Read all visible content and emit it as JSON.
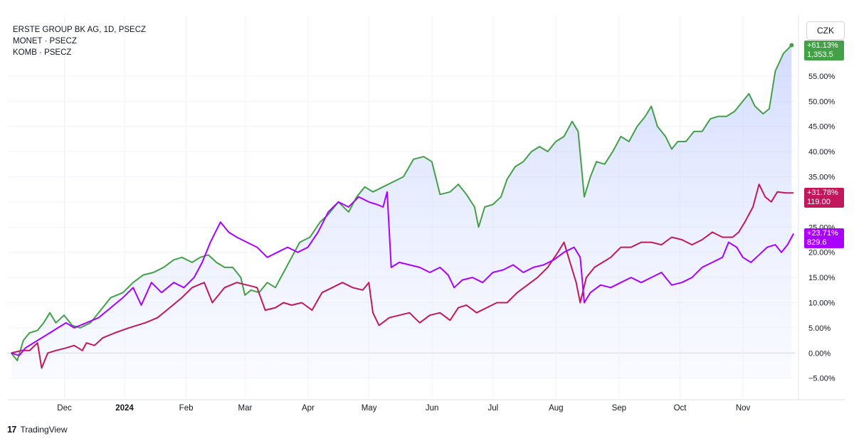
{
  "legend": {
    "line1": "ERSTE GROUP BK AG, 1D, PSECZ",
    "line2": "MONET · PSECZ",
    "line3": "KOMB · PSECZ"
  },
  "currency": "CZK",
  "branding": "TradingView",
  "tags": {
    "erste": {
      "pct": "+61.13%",
      "price": "1,353.5",
      "color": "#43a047"
    },
    "komb": {
      "pct": "+31.78%",
      "price": "119.00",
      "color": "#c2185b"
    },
    "monet": {
      "pct": "+23.71%",
      "price": "829.6",
      "color": "#aa00ff"
    }
  },
  "chart_data": {
    "type": "line",
    "x_ticks": [
      "Dec",
      "2024",
      "Feb",
      "Mar",
      "Apr",
      "May",
      "Jun",
      "Jul",
      "Aug",
      "Sep",
      "Oct",
      "Nov"
    ],
    "y_ticks": [
      "55.00%",
      "50.00%",
      "45.00%",
      "40.00%",
      "35.00%",
      "30.00%",
      "25.00%",
      "20.00%",
      "15.00%",
      "10.00%",
      "5.00%",
      "0.00%",
      "−5.00%"
    ],
    "ylim": [
      -9,
      67
    ],
    "x_range": [
      "2023-11-07",
      "2024-11-29"
    ],
    "series": [
      {
        "name": "ERSTE GROUP BK AG",
        "color": "#43a047",
        "area": true,
        "points": [
          [
            "2023-11-09",
            0
          ],
          [
            "2023-11-12",
            -1.5
          ],
          [
            "2023-11-15",
            2.5
          ],
          [
            "2023-11-18",
            4
          ],
          [
            "2023-11-22",
            4.5
          ],
          [
            "2023-11-25",
            6
          ],
          [
            "2023-11-28",
            8
          ],
          [
            "2023-12-01",
            6
          ],
          [
            "2023-12-05",
            7.5
          ],
          [
            "2023-12-09",
            5.5
          ],
          [
            "2023-12-13",
            5
          ],
          [
            "2023-12-18",
            6
          ],
          [
            "2023-12-22",
            8
          ],
          [
            "2023-12-28",
            11
          ],
          [
            "2024-01-03",
            12
          ],
          [
            "2024-01-08",
            14
          ],
          [
            "2024-01-13",
            15.5
          ],
          [
            "2024-01-18",
            16
          ],
          [
            "2024-01-23",
            17
          ],
          [
            "2024-01-28",
            18.5
          ],
          [
            "2024-02-01",
            19
          ],
          [
            "2024-02-06",
            18
          ],
          [
            "2024-02-10",
            19
          ],
          [
            "2024-02-14",
            19.5
          ],
          [
            "2024-02-18",
            18
          ],
          [
            "2024-02-22",
            17
          ],
          [
            "2024-02-26",
            17
          ],
          [
            "2024-03-01",
            15
          ],
          [
            "2024-03-03",
            11.5
          ],
          [
            "2024-03-06",
            12.5
          ],
          [
            "2024-03-10",
            12
          ],
          [
            "2024-03-14",
            14
          ],
          [
            "2024-03-18",
            13
          ],
          [
            "2024-03-22",
            16
          ],
          [
            "2024-03-26",
            19
          ],
          [
            "2024-03-30",
            22
          ],
          [
            "2024-04-04",
            23
          ],
          [
            "2024-04-09",
            26
          ],
          [
            "2024-04-13",
            27.5
          ],
          [
            "2024-04-18",
            30
          ],
          [
            "2024-04-23",
            28
          ],
          [
            "2024-04-27",
            31
          ],
          [
            "2024-05-01",
            33
          ],
          [
            "2024-05-05",
            32
          ],
          [
            "2024-05-10",
            33
          ],
          [
            "2024-05-15",
            34
          ],
          [
            "2024-05-20",
            35
          ],
          [
            "2024-05-25",
            38.5
          ],
          [
            "2024-05-30",
            39
          ],
          [
            "2024-06-03",
            38
          ],
          [
            "2024-06-07",
            31.5
          ],
          [
            "2024-06-12",
            32
          ],
          [
            "2024-06-16",
            33.5
          ],
          [
            "2024-06-20",
            31.5
          ],
          [
            "2024-06-24",
            29
          ],
          [
            "2024-06-26",
            25
          ],
          [
            "2024-06-29",
            29
          ],
          [
            "2024-07-03",
            29.5
          ],
          [
            "2024-07-07",
            31
          ],
          [
            "2024-07-10",
            34.5
          ],
          [
            "2024-07-14",
            37
          ],
          [
            "2024-07-18",
            38
          ],
          [
            "2024-07-22",
            40
          ],
          [
            "2024-07-26",
            41
          ],
          [
            "2024-07-30",
            40
          ],
          [
            "2024-08-03",
            42
          ],
          [
            "2024-08-07",
            43
          ],
          [
            "2024-08-11",
            46
          ],
          [
            "2024-08-14",
            44
          ],
          [
            "2024-08-17",
            31
          ],
          [
            "2024-08-20",
            35
          ],
          [
            "2024-08-23",
            38
          ],
          [
            "2024-08-27",
            37.5
          ],
          [
            "2024-08-31",
            40
          ],
          [
            "2024-09-04",
            43
          ],
          [
            "2024-09-08",
            42
          ],
          [
            "2024-09-12",
            45
          ],
          [
            "2024-09-16",
            47
          ],
          [
            "2024-09-19",
            49
          ],
          [
            "2024-09-22",
            45
          ],
          [
            "2024-09-26",
            43
          ],
          [
            "2024-09-29",
            40.5
          ],
          [
            "2024-10-02",
            42
          ],
          [
            "2024-10-06",
            42
          ],
          [
            "2024-10-10",
            44
          ],
          [
            "2024-10-14",
            44
          ],
          [
            "2024-10-18",
            46.5
          ],
          [
            "2024-10-22",
            47
          ],
          [
            "2024-10-26",
            47
          ],
          [
            "2024-10-30",
            48
          ],
          [
            "2024-11-03",
            50
          ],
          [
            "2024-11-06",
            51.5
          ],
          [
            "2024-11-09",
            49
          ],
          [
            "2024-11-13",
            47.5
          ],
          [
            "2024-11-16",
            48.5
          ],
          [
            "2024-11-19",
            56
          ],
          [
            "2024-11-23",
            59.5
          ],
          [
            "2024-11-27",
            61.13
          ]
        ]
      },
      {
        "name": "KOMB",
        "color": "#c2185b",
        "area": false,
        "points": [
          [
            "2023-11-09",
            0
          ],
          [
            "2023-11-14",
            0.5
          ],
          [
            "2023-11-18",
            0.5
          ],
          [
            "2023-11-22",
            2
          ],
          [
            "2023-11-24",
            -3
          ],
          [
            "2023-11-27",
            0
          ],
          [
            "2023-12-01",
            0.5
          ],
          [
            "2023-12-06",
            1
          ],
          [
            "2023-12-10",
            1.5
          ],
          [
            "2023-12-14",
            0.5
          ],
          [
            "2023-12-16",
            2
          ],
          [
            "2023-12-20",
            1.5
          ],
          [
            "2023-12-24",
            3
          ],
          [
            "2023-12-30",
            4
          ],
          [
            "2024-01-06",
            5
          ],
          [
            "2024-01-14",
            6
          ],
          [
            "2024-01-20",
            7
          ],
          [
            "2024-01-26",
            9
          ],
          [
            "2024-02-01",
            11
          ],
          [
            "2024-02-06",
            13
          ],
          [
            "2024-02-12",
            14
          ],
          [
            "2024-02-16",
            10
          ],
          [
            "2024-02-22",
            13
          ],
          [
            "2024-02-28",
            14
          ],
          [
            "2024-03-04",
            13.5
          ],
          [
            "2024-03-09",
            13
          ],
          [
            "2024-03-13",
            8.5
          ],
          [
            "2024-03-18",
            9
          ],
          [
            "2024-03-22",
            10
          ],
          [
            "2024-03-26",
            9.5
          ],
          [
            "2024-03-31",
            10
          ],
          [
            "2024-04-05",
            8.5
          ],
          [
            "2024-04-10",
            12
          ],
          [
            "2024-04-15",
            13
          ],
          [
            "2024-04-20",
            14
          ],
          [
            "2024-04-25",
            13
          ],
          [
            "2024-04-30",
            12.5
          ],
          [
            "2024-05-03",
            14
          ],
          [
            "2024-05-05",
            8
          ],
          [
            "2024-05-08",
            5.5
          ],
          [
            "2024-05-13",
            7
          ],
          [
            "2024-05-18",
            7.5
          ],
          [
            "2024-05-23",
            8
          ],
          [
            "2024-05-28",
            6
          ],
          [
            "2024-06-02",
            7.5
          ],
          [
            "2024-06-07",
            8
          ],
          [
            "2024-06-12",
            6.5
          ],
          [
            "2024-06-16",
            9
          ],
          [
            "2024-06-20",
            9.5
          ],
          [
            "2024-06-25",
            8
          ],
          [
            "2024-06-30",
            9
          ],
          [
            "2024-07-05",
            10
          ],
          [
            "2024-07-10",
            10
          ],
          [
            "2024-07-15",
            12
          ],
          [
            "2024-07-20",
            13.5
          ],
          [
            "2024-07-25",
            15
          ],
          [
            "2024-07-30",
            17
          ],
          [
            "2024-08-04",
            20
          ],
          [
            "2024-08-07",
            22
          ],
          [
            "2024-08-10",
            18
          ],
          [
            "2024-08-13",
            14
          ],
          [
            "2024-08-15",
            10
          ],
          [
            "2024-08-18",
            15
          ],
          [
            "2024-08-22",
            17
          ],
          [
            "2024-08-26",
            18
          ],
          [
            "2024-08-30",
            19
          ],
          [
            "2024-09-04",
            21
          ],
          [
            "2024-09-09",
            21
          ],
          [
            "2024-09-14",
            22
          ],
          [
            "2024-09-19",
            22
          ],
          [
            "2024-09-24",
            21.5
          ],
          [
            "2024-09-29",
            23
          ],
          [
            "2024-10-04",
            22.5
          ],
          [
            "2024-10-09",
            21.5
          ],
          [
            "2024-10-14",
            22.5
          ],
          [
            "2024-10-19",
            24
          ],
          [
            "2024-10-24",
            23
          ],
          [
            "2024-10-29",
            23
          ],
          [
            "2024-11-01",
            24
          ],
          [
            "2024-11-04",
            26
          ],
          [
            "2024-11-08",
            29
          ],
          [
            "2024-11-11",
            33.5
          ],
          [
            "2024-11-14",
            31
          ],
          [
            "2024-11-17",
            30
          ],
          [
            "2024-11-20",
            32
          ],
          [
            "2024-11-24",
            31.78
          ],
          [
            "2024-11-28",
            31.78
          ]
        ]
      },
      {
        "name": "MONET",
        "color": "#aa00ff",
        "area": false,
        "points": [
          [
            "2023-11-09",
            0
          ],
          [
            "2023-11-13",
            -0.5
          ],
          [
            "2023-11-16",
            1
          ],
          [
            "2023-11-20",
            2
          ],
          [
            "2023-11-24",
            3
          ],
          [
            "2023-11-28",
            4
          ],
          [
            "2023-12-02",
            5
          ],
          [
            "2023-12-06",
            6
          ],
          [
            "2023-12-10",
            5
          ],
          [
            "2023-12-16",
            6
          ],
          [
            "2023-12-22",
            7
          ],
          [
            "2023-12-28",
            9
          ],
          [
            "2024-01-03",
            11
          ],
          [
            "2024-01-08",
            13
          ],
          [
            "2024-01-12",
            9.5
          ],
          [
            "2024-01-17",
            14
          ],
          [
            "2024-01-22",
            12
          ],
          [
            "2024-01-28",
            14
          ],
          [
            "2024-02-02",
            13
          ],
          [
            "2024-02-07",
            15
          ],
          [
            "2024-02-11",
            18
          ],
          [
            "2024-02-15",
            22
          ],
          [
            "2024-02-20",
            26
          ],
          [
            "2024-02-24",
            24
          ],
          [
            "2024-02-28",
            23
          ],
          [
            "2024-03-04",
            22
          ],
          [
            "2024-03-09",
            21
          ],
          [
            "2024-03-14",
            19
          ],
          [
            "2024-03-19",
            20
          ],
          [
            "2024-03-24",
            21
          ],
          [
            "2024-03-29",
            20
          ],
          [
            "2024-04-03",
            21
          ],
          [
            "2024-04-08",
            24
          ],
          [
            "2024-04-13",
            28
          ],
          [
            "2024-04-18",
            30
          ],
          [
            "2024-04-23",
            29
          ],
          [
            "2024-04-28",
            31
          ],
          [
            "2024-05-03",
            30
          ],
          [
            "2024-05-07",
            29.5
          ],
          [
            "2024-05-10",
            29
          ],
          [
            "2024-05-12",
            32
          ],
          [
            "2024-05-14",
            17
          ],
          [
            "2024-05-18",
            18
          ],
          [
            "2024-05-23",
            17.5
          ],
          [
            "2024-05-28",
            17
          ],
          [
            "2024-06-02",
            16
          ],
          [
            "2024-06-07",
            17
          ],
          [
            "2024-06-11",
            15.5
          ],
          [
            "2024-06-14",
            13
          ],
          [
            "2024-06-18",
            14.5
          ],
          [
            "2024-06-23",
            15
          ],
          [
            "2024-06-28",
            14
          ],
          [
            "2024-07-03",
            16
          ],
          [
            "2024-07-08",
            16.5
          ],
          [
            "2024-07-13",
            17.5
          ],
          [
            "2024-07-18",
            16
          ],
          [
            "2024-07-23",
            17
          ],
          [
            "2024-07-28",
            17.5
          ],
          [
            "2024-08-02",
            18.5
          ],
          [
            "2024-08-07",
            20
          ],
          [
            "2024-08-12",
            21
          ],
          [
            "2024-08-15",
            19
          ],
          [
            "2024-08-17",
            10
          ],
          [
            "2024-08-20",
            12
          ],
          [
            "2024-08-25",
            13.5
          ],
          [
            "2024-08-30",
            13
          ],
          [
            "2024-09-04",
            14
          ],
          [
            "2024-09-09",
            15
          ],
          [
            "2024-09-14",
            14
          ],
          [
            "2024-09-19",
            15
          ],
          [
            "2024-09-24",
            16
          ],
          [
            "2024-09-29",
            13.5
          ],
          [
            "2024-10-04",
            14
          ],
          [
            "2024-10-09",
            15
          ],
          [
            "2024-10-14",
            17
          ],
          [
            "2024-10-19",
            18
          ],
          [
            "2024-10-24",
            19
          ],
          [
            "2024-10-27",
            22
          ],
          [
            "2024-10-31",
            21
          ],
          [
            "2024-11-03",
            19
          ],
          [
            "2024-11-07",
            18
          ],
          [
            "2024-11-11",
            19.5
          ],
          [
            "2024-11-15",
            21
          ],
          [
            "2024-11-19",
            21.5
          ],
          [
            "2024-11-22",
            20
          ],
          [
            "2024-11-25",
            21.5
          ],
          [
            "2024-11-28",
            23.71
          ]
        ]
      }
    ]
  }
}
